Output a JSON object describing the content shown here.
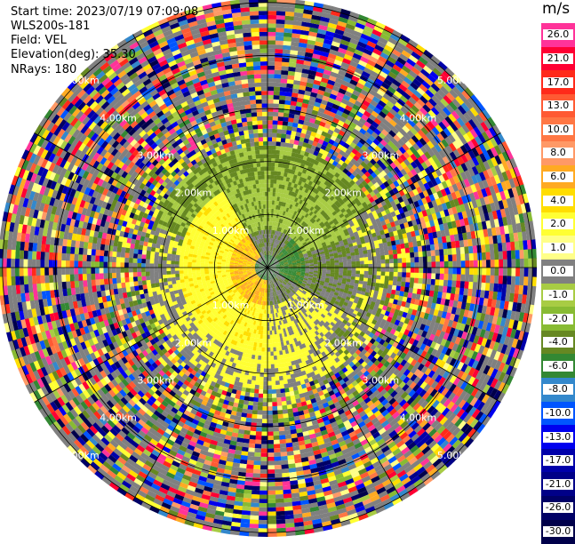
{
  "header": {
    "start_time": "Start time: 2023/07/19 07:09:08",
    "instrument": "WLS200s-181",
    "field": "Field: VEL",
    "elevation": "Elevation(deg): 35.30",
    "nrays": "NRays: 180"
  },
  "colorbar": {
    "unit": "m/s",
    "levels": [
      {
        "label": "26.0",
        "color": "#ff3399"
      },
      {
        "label": "21.0",
        "color": "#ff0033"
      },
      {
        "label": "17.0",
        "color": "#ff2a1a"
      },
      {
        "label": "13.0",
        "color": "#ff5a33"
      },
      {
        "label": "10.0",
        "color": "#ff7744"
      },
      {
        "label": "8.0",
        "color": "#ff9966"
      },
      {
        "label": "6.0",
        "color": "#ffaa22"
      },
      {
        "label": "4.0",
        "color": "#ffdd00"
      },
      {
        "label": "2.0",
        "color": "#ffff33"
      },
      {
        "label": "1.0",
        "color": "#ffff88"
      },
      {
        "label": "0.0",
        "color": "#808080"
      },
      {
        "label": "-1.0",
        "color": "#a8cc44"
      },
      {
        "label": "-2.0",
        "color": "#88bb33"
      },
      {
        "label": "-4.0",
        "color": "#668822"
      },
      {
        "label": "-6.0",
        "color": "#338833"
      },
      {
        "label": "-8.0",
        "color": "#3388cc"
      },
      {
        "label": "-10.0",
        "color": "#0055ff"
      },
      {
        "label": "-13.0",
        "color": "#0000ee"
      },
      {
        "label": "-17.0",
        "color": "#0000aa"
      },
      {
        "label": "-21.0",
        "color": "#000088"
      },
      {
        "label": "-26.0",
        "color": "#000066"
      },
      {
        "label": "-30.0",
        "color": "#00004a"
      }
    ]
  },
  "range_rings": [
    "1.00km",
    "2.00km",
    "3.00km",
    "4.00km",
    "5.00km"
  ]
}
